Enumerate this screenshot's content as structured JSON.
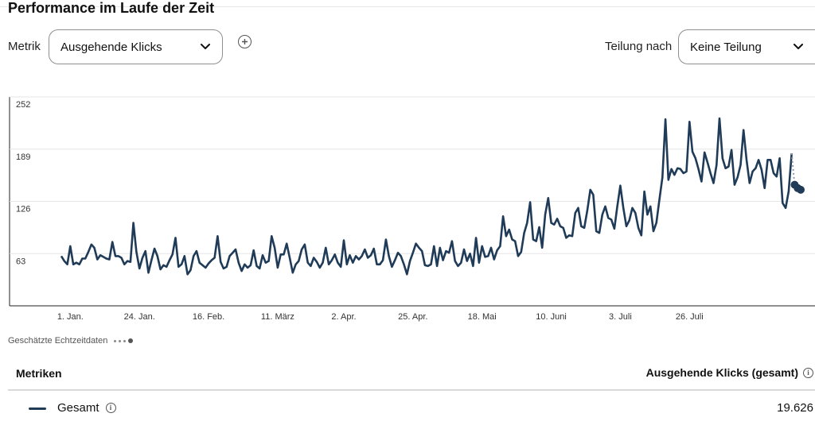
{
  "header": {
    "title": "Performance im Laufe der Zeit"
  },
  "controls": {
    "metric_label": "Metrik",
    "metric_value": "Ausgehende Klicks",
    "split_label": "Teilung nach",
    "split_value": "Keine Teilung"
  },
  "icons": {
    "add": "plus-circle-icon",
    "chevron": "chevron-down-icon",
    "info": "info-icon"
  },
  "colors": {
    "line": "#1f3b57",
    "grid": "#e6e6e6",
    "axis": "#333333"
  },
  "chart_data": {
    "type": "line",
    "ylim": [
      0,
      252
    ],
    "yticks": [
      63,
      126,
      189,
      252
    ],
    "xticks": [
      "1. Jan.",
      "24. Jan.",
      "16. Feb.",
      "11. März",
      "2. Apr.",
      "25. Apr.",
      "18. Mai",
      "10. Juni",
      "3. Juli",
      "26. Juli"
    ],
    "xtick_index": [
      3,
      26,
      49,
      72,
      94,
      117,
      140,
      163,
      186,
      209
    ],
    "series": [
      {
        "values": [
          60,
          54,
          50,
          72,
          50,
          52,
          50,
          57,
          57,
          65,
          74,
          70,
          56,
          61,
          59,
          57,
          56,
          77,
          60,
          60,
          58,
          50,
          54,
          53,
          100,
          65,
          45,
          58,
          66,
          40,
          55,
          69,
          60,
          44,
          49,
          47,
          55,
          62,
          82,
          47,
          50,
          60,
          38,
          43,
          60,
          66,
          52,
          49,
          46,
          51,
          55,
          58,
          84,
          53,
          45,
          47,
          60,
          64,
          68,
          52,
          42,
          50,
          46,
          49,
          67,
          48,
          45,
          61,
          52,
          54,
          84,
          70,
          46,
          62,
          62,
          75,
          58,
          40,
          50,
          54,
          68,
          74,
          52,
          48,
          58,
          53,
          46,
          52,
          70,
          50,
          55,
          62,
          52,
          47,
          79,
          50,
          61,
          52,
          60,
          56,
          60,
          68,
          58,
          61,
          69,
          50,
          50,
          55,
          80,
          60,
          47,
          55,
          64,
          60,
          50,
          38,
          54,
          64,
          75,
          70,
          66,
          49,
          48,
          50,
          72,
          48,
          70,
          55,
          66,
          64,
          78,
          54,
          48,
          52,
          68,
          54,
          63,
          48,
          82,
          52,
          72,
          59,
          60,
          70,
          56,
          67,
          72,
          108,
          84,
          92,
          80,
          78,
          60,
          65,
          88,
          100,
          125,
          80,
          78,
          95,
          70,
          110,
          130,
          100,
          98,
          105,
          96,
          94,
          82,
          85,
          84,
          112,
          118,
          96,
          94,
          115,
          140,
          134,
          90,
          88,
          110,
          120,
          106,
          104,
          93,
          120,
          145,
          118,
          96,
          103,
          118,
          112,
          94,
          85,
          138,
          110,
          120,
          90,
          100,
          128,
          155,
          225,
          152,
          165,
          158,
          166,
          165,
          160,
          162,
          222,
          186,
          178,
          165,
          150,
          185,
          173,
          160,
          148,
          170,
          226,
          178,
          166,
          168,
          188,
          146,
          155,
          170,
          212,
          176,
          148,
          162,
          166,
          176,
          164,
          142,
          176,
          176,
          160,
          156,
          178,
          124,
          118,
          138,
          184
        ],
        "estimated": [
          146,
          142,
          140
        ]
      }
    ]
  },
  "legend": {
    "estimated_label": "Geschätzte Echtzeitdaten"
  },
  "metrics_table": {
    "header_left": "Metriken",
    "header_right": "Ausgehende Klicks (gesamt)",
    "rows": [
      {
        "label": "Gesamt",
        "total": "19.626"
      }
    ]
  }
}
